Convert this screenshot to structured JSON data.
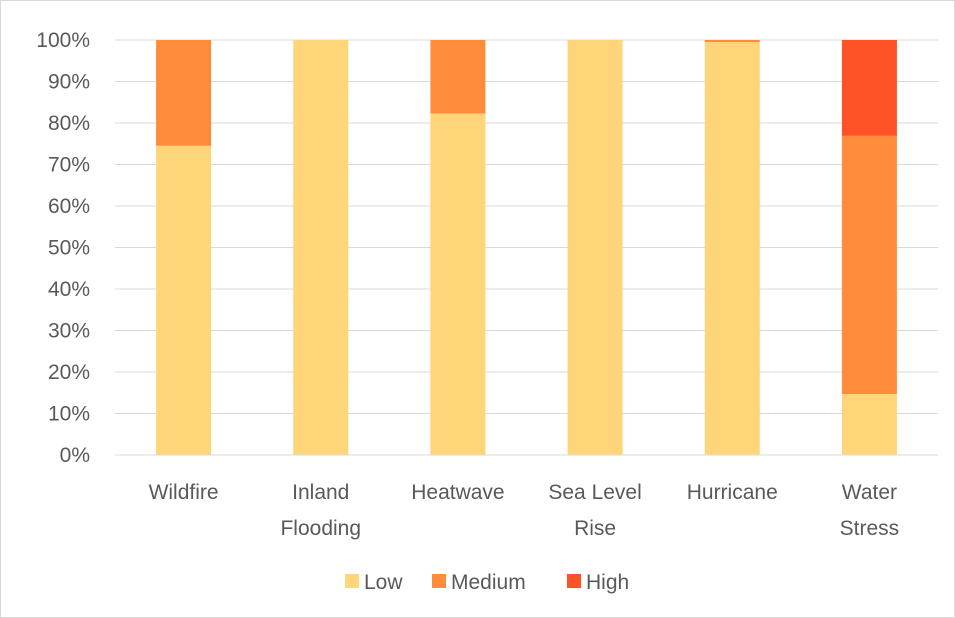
{
  "chart_data": {
    "type": "bar",
    "stacked": true,
    "percent_stacked": true,
    "categories": [
      [
        "Wildfire"
      ],
      [
        "Inland",
        "Flooding"
      ],
      [
        "Heatwave"
      ],
      [
        "Sea Level",
        "Rise"
      ],
      [
        "Hurricane"
      ],
      [
        "Water",
        "Stress"
      ]
    ],
    "series": [
      {
        "name": "Low",
        "color": "#FFD57A",
        "values": [
          74.5,
          100,
          82.3,
          100,
          99.5,
          14.7
        ]
      },
      {
        "name": "Medium",
        "color": "#FF8C3A",
        "values": [
          25.5,
          0,
          17.7,
          0,
          0.5,
          62.2
        ]
      },
      {
        "name": "High",
        "color": "#FF5226",
        "values": [
          0,
          0,
          0,
          0,
          0,
          23.1
        ]
      }
    ],
    "y_ticks": [
      "0%",
      "10%",
      "20%",
      "30%",
      "40%",
      "50%",
      "60%",
      "70%",
      "80%",
      "90%",
      "100%"
    ],
    "ylim": [
      0,
      100
    ],
    "grid": true,
    "legend": "bottom",
    "title": "",
    "xlabel": "",
    "ylabel": ""
  }
}
